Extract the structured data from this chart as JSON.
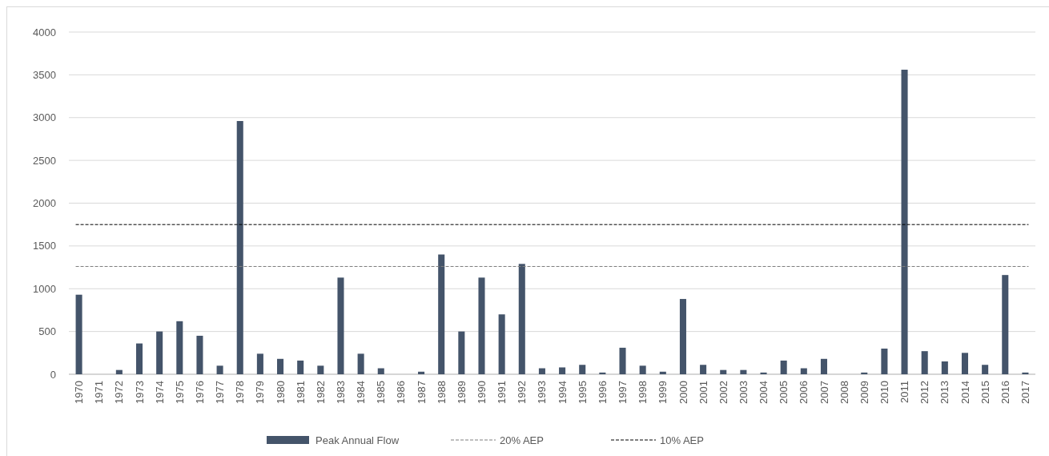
{
  "chart_data": {
    "type": "bar",
    "categories": [
      "1970",
      "1971",
      "1972",
      "1973",
      "1974",
      "1975",
      "1976",
      "1977",
      "1978",
      "1979",
      "1980",
      "1981",
      "1982",
      "1983",
      "1984",
      "1985",
      "1986",
      "1987",
      "1988",
      "1989",
      "1990",
      "1991",
      "1992",
      "1993",
      "1994",
      "1995",
      "1996",
      "1997",
      "1998",
      "1999",
      "2000",
      "2001",
      "2002",
      "2003",
      "2004",
      "2005",
      "2006",
      "2007",
      "2008",
      "2009",
      "2010",
      "2011",
      "2012",
      "2013",
      "2014",
      "2015",
      "2016",
      "2017"
    ],
    "series": [
      {
        "name": "Peak Annual Flow",
        "color": "#44546a",
        "values": [
          930,
          0,
          50,
          360,
          500,
          620,
          450,
          100,
          2960,
          240,
          180,
          160,
          100,
          1130,
          240,
          70,
          0,
          30,
          1400,
          500,
          1130,
          700,
          1290,
          70,
          80,
          110,
          20,
          310,
          100,
          30,
          880,
          110,
          50,
          50,
          20,
          160,
          70,
          180,
          0,
          20,
          300,
          3560,
          270,
          150,
          250,
          110,
          1160,
          20
        ]
      }
    ],
    "ylim": [
      0,
      4000
    ],
    "yticks": [
      0,
      500,
      1000,
      1500,
      2000,
      2500,
      3000,
      3500,
      4000
    ],
    "grid": "y",
    "legend": "bottom",
    "ref_lines": [
      {
        "axis": "y",
        "value": 1260,
        "label": "20% AEP",
        "color": "#7f7f7f",
        "line_style": "dashed"
      },
      {
        "axis": "y",
        "value": 1750,
        "label": "10% AEP",
        "color": "#000000",
        "line_style": "dashed"
      }
    ]
  }
}
